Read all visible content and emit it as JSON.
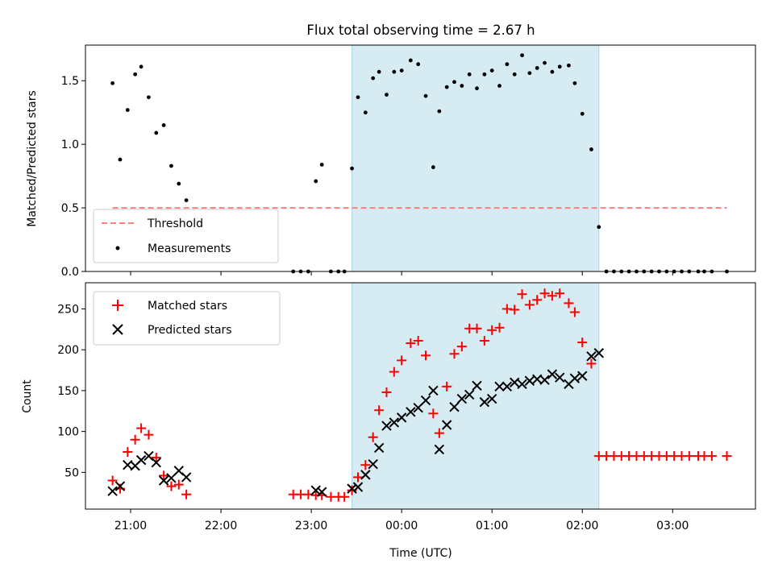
{
  "figure": {
    "title": "Flux total observing time = 2.67 h",
    "xlabel": "Time (UTC)",
    "xtick_labels": [
      "21:00",
      "22:00",
      "23:00",
      "00:00",
      "01:00",
      "02:00",
      "03:00"
    ]
  },
  "colors": {
    "shade": "#add8e6",
    "threshold": "#ff7f7f",
    "matched": "#ff0000",
    "predicted": "#000000",
    "measurement": "#000000"
  },
  "chart_data": [
    {
      "type": "scatter",
      "panel": "top",
      "ylabel": "Matched/Predicted stars",
      "x_unit": "hours after 21:00 UTC",
      "xlim": [
        "20:30",
        "03:55"
      ],
      "ylim": [
        0,
        1.78
      ],
      "yticks": [
        0.0,
        0.5,
        1.0,
        1.5
      ],
      "ytick_labels": [
        "0.0",
        "0.5",
        "1.0",
        "1.5"
      ],
      "shaded_interval": [
        "23:27",
        "02:11"
      ],
      "threshold": {
        "label": "Threshold",
        "value": 0.5,
        "x_range": [
          "20:48",
          "03:36"
        ]
      },
      "legend": {
        "placement": "lower-left",
        "entries": [
          "Threshold",
          "Measurements"
        ]
      },
      "series": [
        {
          "name": "Measurements",
          "x": [
            "20:48",
            "20:53",
            "20:58",
            "21:03",
            "21:07",
            "21:12",
            "21:17",
            "21:22",
            "21:27",
            "21:32",
            "21:37",
            "22:48",
            "22:53",
            "22:58",
            "23:03",
            "23:07",
            "23:13",
            "23:18",
            "23:22",
            "23:27",
            "23:31",
            "23:36",
            "23:41",
            "23:45",
            "23:50",
            "23:55",
            "00:00",
            "00:06",
            "00:11",
            "00:16",
            "00:21",
            "00:25",
            "00:30",
            "00:35",
            "00:40",
            "00:45",
            "00:50",
            "00:55",
            "01:00",
            "01:05",
            "01:10",
            "01:15",
            "01:20",
            "01:25",
            "01:30",
            "01:35",
            "01:40",
            "01:45",
            "01:51",
            "01:55",
            "02:00",
            "02:06",
            "02:11",
            "02:16",
            "02:21",
            "02:26",
            "02:31",
            "02:36",
            "02:41",
            "02:46",
            "02:51",
            "02:56",
            "03:01",
            "03:06",
            "03:11",
            "03:17",
            "03:21",
            "03:26",
            "03:36"
          ],
          "y": [
            1.48,
            0.88,
            1.27,
            1.55,
            1.61,
            1.37,
            1.09,
            1.15,
            0.83,
            0.69,
            0.56,
            0.0,
            0.0,
            0.0,
            0.71,
            0.84,
            0.0,
            0.0,
            0.0,
            0.81,
            1.37,
            1.25,
            1.52,
            1.57,
            1.39,
            1.57,
            1.58,
            1.66,
            1.63,
            1.38,
            0.82,
            1.26,
            1.45,
            1.49,
            1.46,
            1.55,
            1.44,
            1.55,
            1.58,
            1.46,
            1.63,
            1.55,
            1.7,
            1.56,
            1.6,
            1.64,
            1.57,
            1.61,
            1.62,
            1.48,
            1.24,
            0.96,
            0.35,
            0.0,
            0.0,
            0.0,
            0.0,
            0.0,
            0.0,
            0.0,
            0.0,
            0.0,
            0.0,
            0.0,
            0.0,
            0.0,
            0.0,
            0.0,
            0.0
          ]
        }
      ]
    },
    {
      "type": "scatter",
      "panel": "bottom",
      "ylabel": "Count",
      "x_unit": "hours after 21:00 UTC",
      "xlim": [
        "20:30",
        "03:55"
      ],
      "ylim": [
        5,
        282
      ],
      "yticks": [
        50,
        100,
        150,
        200,
        250
      ],
      "ytick_labels": [
        "50",
        "100",
        "150",
        "200",
        "250"
      ],
      "shaded_interval": [
        "23:27",
        "02:11"
      ],
      "legend": {
        "placement": "upper-left",
        "entries": [
          "Matched stars",
          "Predicted stars"
        ]
      },
      "series": [
        {
          "name": "Matched stars",
          "marker": "+",
          "x": [
            "20:48",
            "20:53",
            "20:58",
            "21:03",
            "21:07",
            "21:12",
            "21:17",
            "21:22",
            "21:27",
            "21:32",
            "21:37",
            "22:48",
            "22:53",
            "22:58",
            "23:03",
            "23:07",
            "23:13",
            "23:18",
            "23:22",
            "23:27",
            "23:31",
            "23:36",
            "23:41",
            "23:45",
            "23:50",
            "23:55",
            "00:00",
            "00:06",
            "00:11",
            "00:16",
            "00:21",
            "00:25",
            "00:30",
            "00:35",
            "00:40",
            "00:45",
            "00:50",
            "00:55",
            "01:00",
            "01:05",
            "01:10",
            "01:15",
            "01:20",
            "01:25",
            "01:30",
            "01:35",
            "01:40",
            "01:45",
            "01:51",
            "01:55",
            "02:00",
            "02:06",
            "02:11",
            "02:16",
            "02:21",
            "02:26",
            "02:31",
            "02:36",
            "02:41",
            "02:46",
            "02:51",
            "02:56",
            "03:01",
            "03:06",
            "03:11",
            "03:17",
            "03:21",
            "03:26",
            "03:36"
          ],
          "y": [
            40,
            30,
            75,
            90,
            104,
            96,
            68,
            46,
            33,
            35,
            23,
            23,
            23,
            23,
            22,
            22,
            20,
            20,
            20,
            28,
            44,
            59,
            93,
            126,
            148,
            173,
            187,
            208,
            211,
            193,
            122,
            98,
            155,
            195,
            204,
            226,
            226,
            211,
            224,
            227,
            250,
            249,
            268,
            255,
            261,
            269,
            266,
            269,
            257,
            246,
            209,
            183,
            70,
            70,
            70,
            70,
            70,
            70,
            70,
            70,
            70,
            70,
            70,
            70,
            70,
            70,
            70,
            70,
            70
          ]
        },
        {
          "name": "Predicted stars",
          "marker": "x",
          "x": [
            "20:48",
            "20:53",
            "20:58",
            "21:03",
            "21:07",
            "21:12",
            "21:17",
            "21:22",
            "21:27",
            "21:32",
            "21:37",
            "23:03",
            "23:07",
            "23:27",
            "23:31",
            "23:36",
            "23:41",
            "23:45",
            "23:50",
            "23:55",
            "00:00",
            "00:06",
            "00:11",
            "00:16",
            "00:21",
            "00:25",
            "00:30",
            "00:35",
            "00:40",
            "00:45",
            "00:50",
            "00:55",
            "01:00",
            "01:05",
            "01:10",
            "01:15",
            "01:20",
            "01:25",
            "01:30",
            "01:35",
            "01:40",
            "01:45",
            "01:51",
            "01:55",
            "02:00",
            "02:06",
            "02:11"
          ],
          "y": [
            27,
            33,
            59,
            58,
            65,
            70,
            62,
            40,
            43,
            52,
            44,
            28,
            26,
            30,
            32,
            47,
            60,
            80,
            107,
            111,
            117,
            124,
            129,
            138,
            150,
            78,
            108,
            130,
            140,
            145,
            156,
            136,
            140,
            155,
            155,
            160,
            158,
            162,
            164,
            163,
            170,
            166,
            158,
            165,
            168,
            192,
            196
          ]
        }
      ]
    }
  ]
}
